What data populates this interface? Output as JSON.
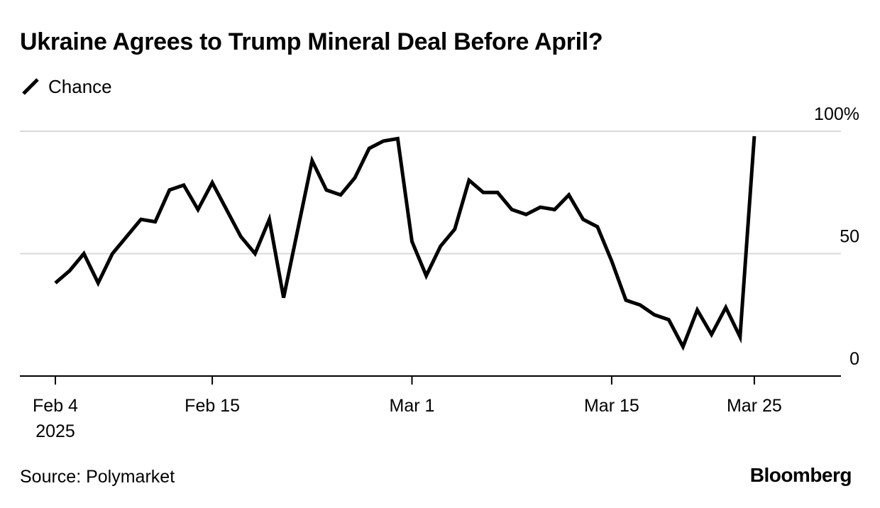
{
  "title": "Ukraine Agrees to Trump Mineral Deal Before April?",
  "legend": {
    "label": "Chance",
    "icon": "diagonal-line-icon"
  },
  "source": "Source: Polymarket",
  "brand": "Bloomberg",
  "colors": {
    "line": "#000000",
    "grid": "#d9d9d9",
    "axis": "#000000",
    "background": "#ffffff"
  },
  "chart_data": {
    "type": "line",
    "title": "Ukraine Agrees to Trump Mineral Deal Before April?",
    "xlabel": "",
    "ylabel": "",
    "ylim": [
      0,
      100
    ],
    "xlim_days": [
      0,
      55
    ],
    "y_ticks": [
      {
        "value": 0,
        "label": "0"
      },
      {
        "value": 50,
        "label": "50"
      },
      {
        "value": 100,
        "label": "100%"
      }
    ],
    "x_ticks": [
      {
        "day": 0,
        "lines": [
          "Feb 4",
          "2025"
        ]
      },
      {
        "day": 11,
        "lines": [
          "Feb 15"
        ]
      },
      {
        "day": 25,
        "lines": [
          "Mar 1"
        ]
      },
      {
        "day": 39,
        "lines": [
          "Mar 15"
        ]
      },
      {
        "day": 49,
        "lines": [
          "Mar 25"
        ]
      }
    ],
    "grid": true,
    "legend_position": "top-left",
    "series": [
      {
        "name": "Chance",
        "x": [
          0,
          1,
          2,
          3,
          4,
          5,
          6,
          7,
          8,
          9,
          10,
          11,
          12,
          13,
          14,
          15,
          16,
          17,
          18,
          19,
          20,
          21,
          22,
          23,
          24,
          25,
          26,
          27,
          28,
          29,
          30,
          31,
          32,
          33,
          34,
          35,
          36,
          37,
          38,
          39,
          40,
          41,
          42,
          43,
          44,
          45,
          46,
          47,
          48,
          49
        ],
        "values": [
          38,
          43,
          50,
          38,
          50,
          57,
          64,
          63,
          76,
          78,
          68,
          79,
          68,
          57,
          50,
          64,
          32,
          60,
          88,
          76,
          74,
          81,
          93,
          96,
          97,
          55,
          41,
          53,
          60,
          80,
          75,
          75,
          68,
          66,
          69,
          68,
          74,
          64,
          61,
          47,
          31,
          29,
          25,
          23,
          12,
          27,
          17,
          28,
          16,
          98
        ]
      }
    ]
  }
}
